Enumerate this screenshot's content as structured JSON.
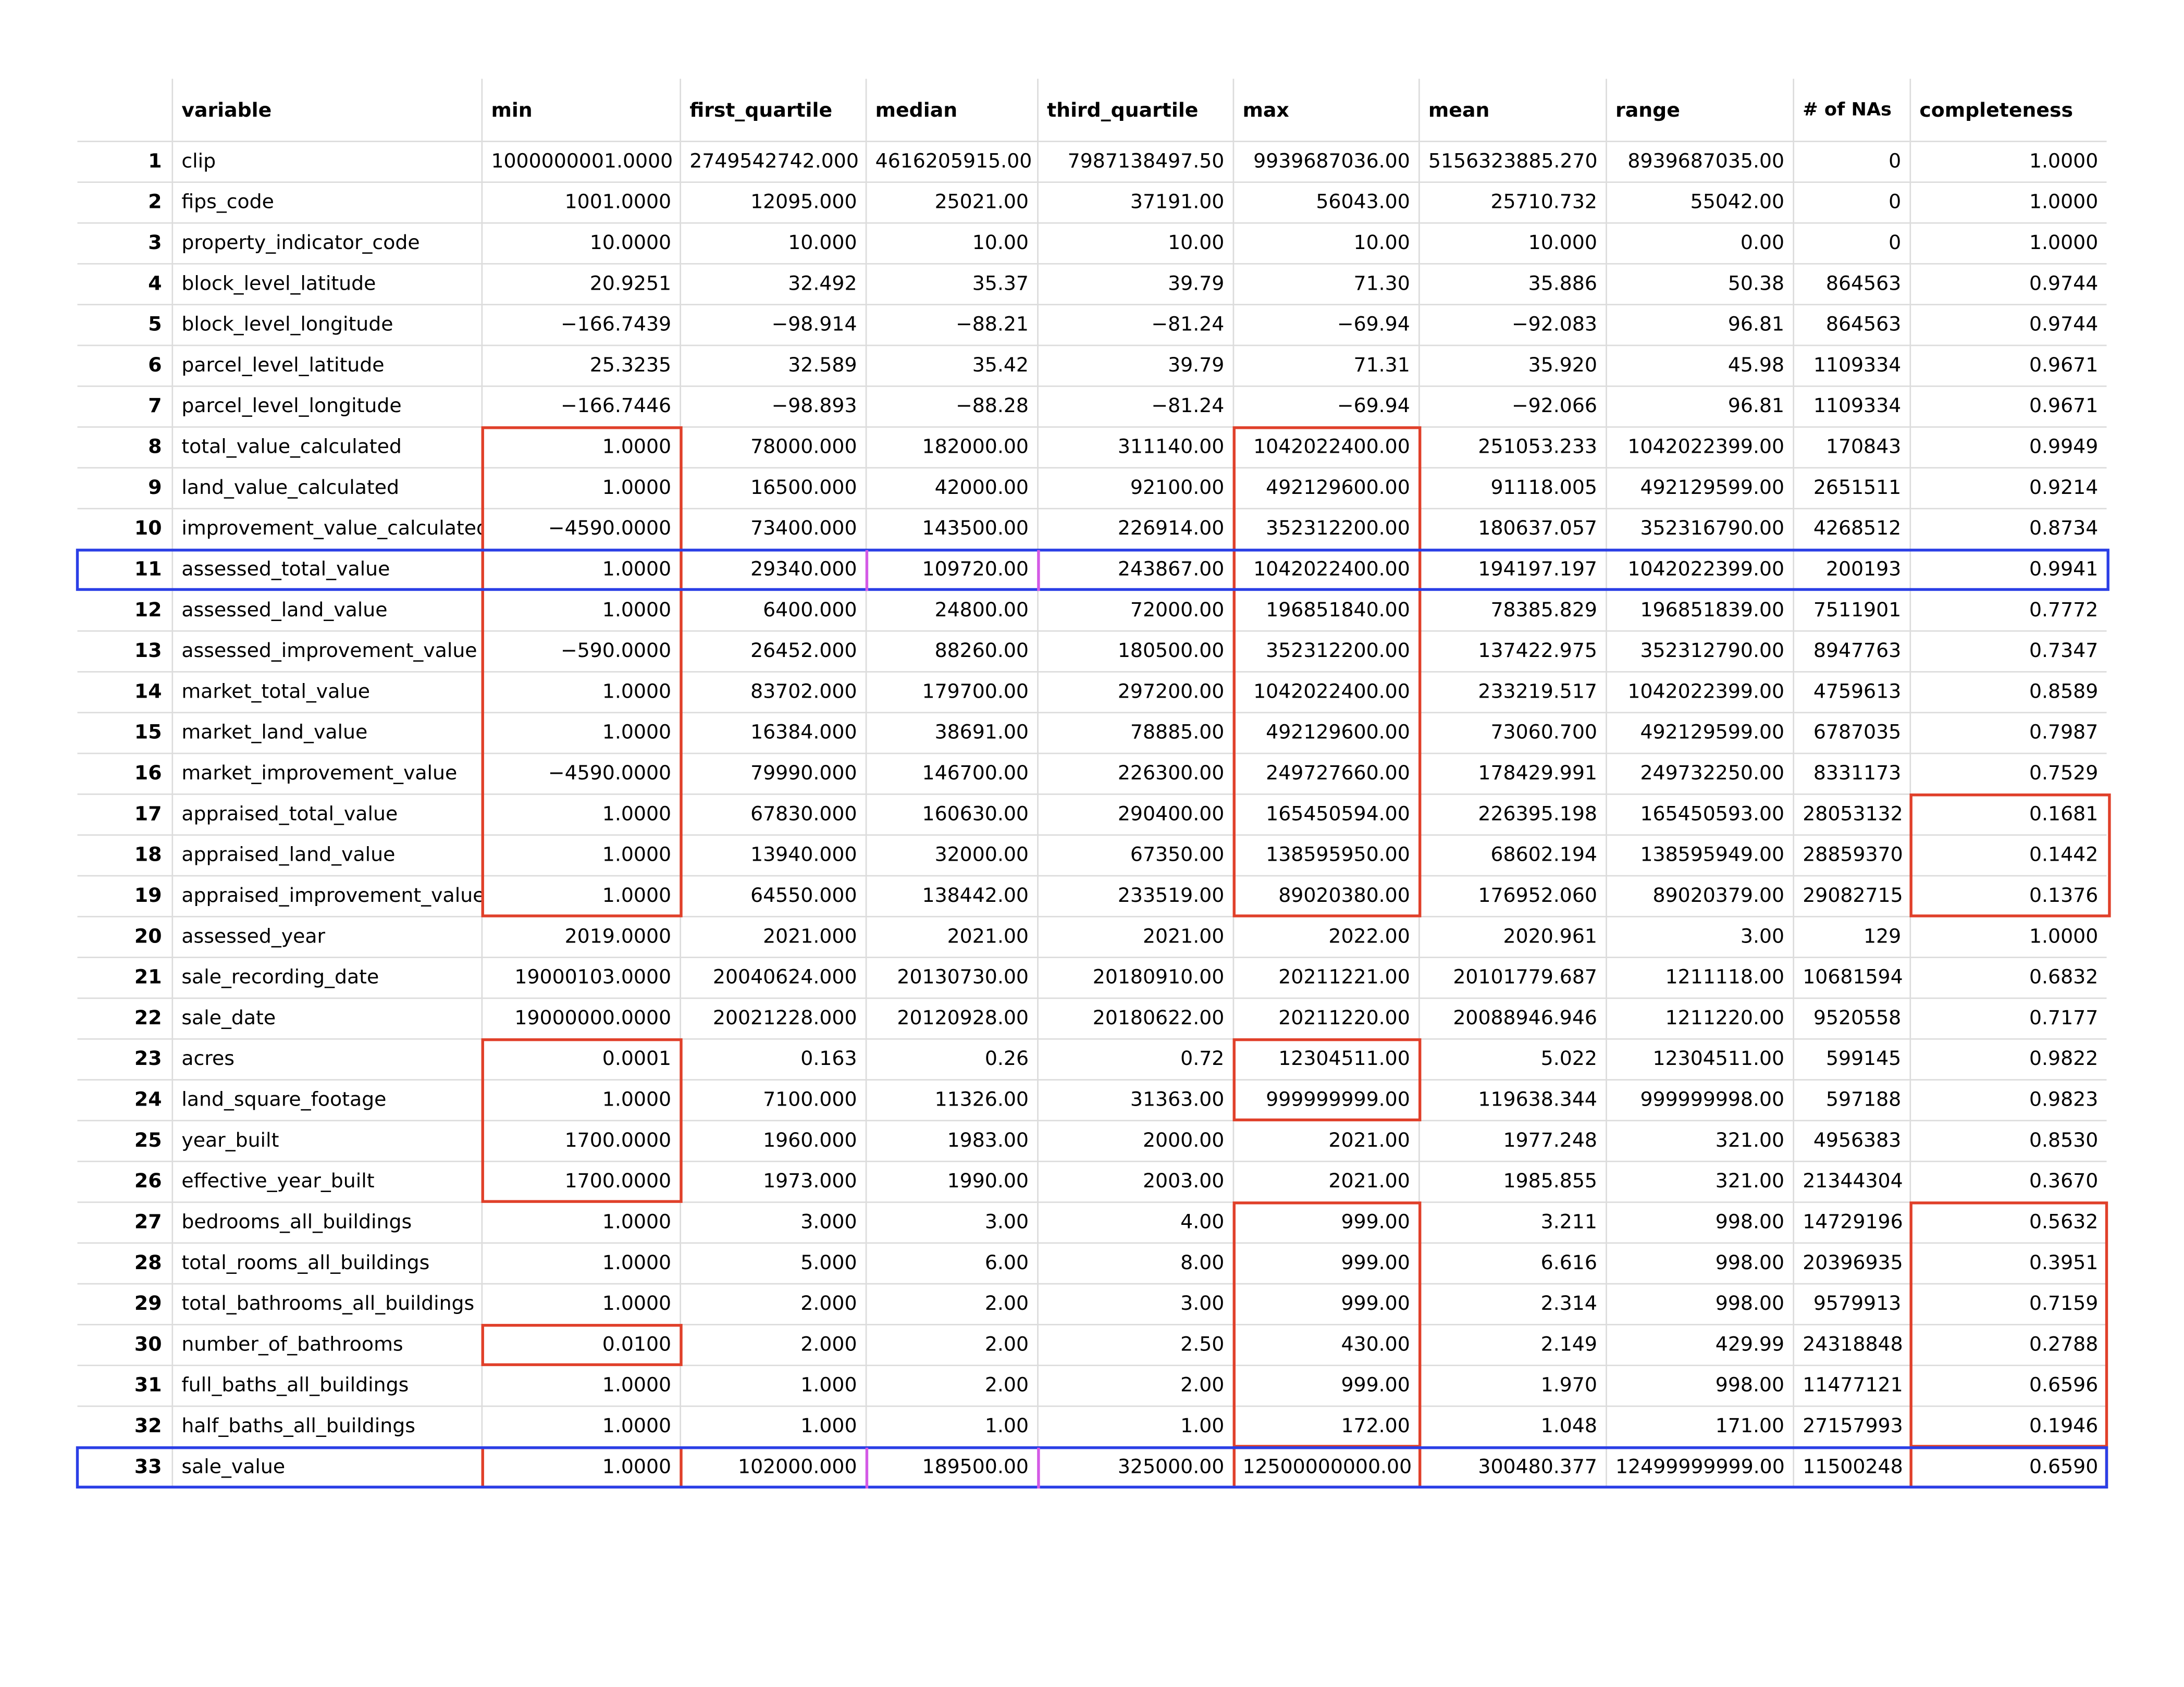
{
  "table": {
    "headers": [
      "",
      "variable",
      "min",
      "first_quartile",
      "median",
      "third_quartile",
      "max",
      "mean",
      "range",
      "# of NAs",
      "completeness"
    ],
    "rows": [
      [
        "1",
        "clip",
        "1000000001.0000",
        "2749542742.000",
        "4616205915.00",
        "7987138497.50",
        "9939687036.00",
        "5156323885.270",
        "8939687035.00",
        "0",
        "1.0000"
      ],
      [
        "2",
        "fips_code",
        "1001.0000",
        "12095.000",
        "25021.00",
        "37191.00",
        "56043.00",
        "25710.732",
        "55042.00",
        "0",
        "1.0000"
      ],
      [
        "3",
        "property_indicator_code",
        "10.0000",
        "10.000",
        "10.00",
        "10.00",
        "10.00",
        "10.000",
        "0.00",
        "0",
        "1.0000"
      ],
      [
        "4",
        "block_level_latitude",
        "20.9251",
        "32.492",
        "35.37",
        "39.79",
        "71.30",
        "35.886",
        "50.38",
        "864563",
        "0.9744"
      ],
      [
        "5",
        "block_level_longitude",
        "−166.7439",
        "−98.914",
        "−88.21",
        "−81.24",
        "−69.94",
        "−92.083",
        "96.81",
        "864563",
        "0.9744"
      ],
      [
        "6",
        "parcel_level_latitude",
        "25.3235",
        "32.589",
        "35.42",
        "39.79",
        "71.31",
        "35.920",
        "45.98",
        "1109334",
        "0.9671"
      ],
      [
        "7",
        "parcel_level_longitude",
        "−166.7446",
        "−98.893",
        "−88.28",
        "−81.24",
        "−69.94",
        "−92.066",
        "96.81",
        "1109334",
        "0.9671"
      ],
      [
        "8",
        "total_value_calculated",
        "1.0000",
        "78000.000",
        "182000.00",
        "311140.00",
        "1042022400.00",
        "251053.233",
        "1042022399.00",
        "170843",
        "0.9949"
      ],
      [
        "9",
        "land_value_calculated",
        "1.0000",
        "16500.000",
        "42000.00",
        "92100.00",
        "492129600.00",
        "91118.005",
        "492129599.00",
        "2651511",
        "0.9214"
      ],
      [
        "10",
        "improvement_value_calculated",
        "−4590.0000",
        "73400.000",
        "143500.00",
        "226914.00",
        "352312200.00",
        "180637.057",
        "352316790.00",
        "4268512",
        "0.8734"
      ],
      [
        "11",
        "assessed_total_value",
        "1.0000",
        "29340.000",
        "109720.00",
        "243867.00",
        "1042022400.00",
        "194197.197",
        "1042022399.00",
        "200193",
        "0.9941"
      ],
      [
        "12",
        "assessed_land_value",
        "1.0000",
        "6400.000",
        "24800.00",
        "72000.00",
        "196851840.00",
        "78385.829",
        "196851839.00",
        "7511901",
        "0.7772"
      ],
      [
        "13",
        "assessed_improvement_value",
        "−590.0000",
        "26452.000",
        "88260.00",
        "180500.00",
        "352312200.00",
        "137422.975",
        "352312790.00",
        "8947763",
        "0.7347"
      ],
      [
        "14",
        "market_total_value",
        "1.0000",
        "83702.000",
        "179700.00",
        "297200.00",
        "1042022400.00",
        "233219.517",
        "1042022399.00",
        "4759613",
        "0.8589"
      ],
      [
        "15",
        "market_land_value",
        "1.0000",
        "16384.000",
        "38691.00",
        "78885.00",
        "492129600.00",
        "73060.700",
        "492129599.00",
        "6787035",
        "0.7987"
      ],
      [
        "16",
        "market_improvement_value",
        "−4590.0000",
        "79990.000",
        "146700.00",
        "226300.00",
        "249727660.00",
        "178429.991",
        "249732250.00",
        "8331173",
        "0.7529"
      ],
      [
        "17",
        "appraised_total_value",
        "1.0000",
        "67830.000",
        "160630.00",
        "290400.00",
        "165450594.00",
        "226395.198",
        "165450593.00",
        "28053132",
        "0.1681"
      ],
      [
        "18",
        "appraised_land_value",
        "1.0000",
        "13940.000",
        "32000.00",
        "67350.00",
        "138595950.00",
        "68602.194",
        "138595949.00",
        "28859370",
        "0.1442"
      ],
      [
        "19",
        "appraised_improvement_value",
        "1.0000",
        "64550.000",
        "138442.00",
        "233519.00",
        "89020380.00",
        "176952.060",
        "89020379.00",
        "29082715",
        "0.1376"
      ],
      [
        "20",
        "assessed_year",
        "2019.0000",
        "2021.000",
        "2021.00",
        "2021.00",
        "2022.00",
        "2020.961",
        "3.00",
        "129",
        "1.0000"
      ],
      [
        "21",
        "sale_recording_date",
        "19000103.0000",
        "20040624.000",
        "20130730.00",
        "20180910.00",
        "20211221.00",
        "20101779.687",
        "1211118.00",
        "10681594",
        "0.6832"
      ],
      [
        "22",
        "sale_date",
        "19000000.0000",
        "20021228.000",
        "20120928.00",
        "20180622.00",
        "20211220.00",
        "20088946.946",
        "1211220.00",
        "9520558",
        "0.7177"
      ],
      [
        "23",
        "acres",
        "0.0001",
        "0.163",
        "0.26",
        "0.72",
        "12304511.00",
        "5.022",
        "12304511.00",
        "599145",
        "0.9822"
      ],
      [
        "24",
        "land_square_footage",
        "1.0000",
        "7100.000",
        "11326.00",
        "31363.00",
        "999999999.00",
        "119638.344",
        "999999998.00",
        "597188",
        "0.9823"
      ],
      [
        "25",
        "year_built",
        "1700.0000",
        "1960.000",
        "1983.00",
        "2000.00",
        "2021.00",
        "1977.248",
        "321.00",
        "4956383",
        "0.8530"
      ],
      [
        "26",
        "effective_year_built",
        "1700.0000",
        "1973.000",
        "1990.00",
        "2003.00",
        "2021.00",
        "1985.855",
        "321.00",
        "21344304",
        "0.3670"
      ],
      [
        "27",
        "bedrooms_all_buildings",
        "1.0000",
        "3.000",
        "3.00",
        "4.00",
        "999.00",
        "3.211",
        "998.00",
        "14729196",
        "0.5632"
      ],
      [
        "28",
        "total_rooms_all_buildings",
        "1.0000",
        "5.000",
        "6.00",
        "8.00",
        "999.00",
        "6.616",
        "998.00",
        "20396935",
        "0.3951"
      ],
      [
        "29",
        "total_bathrooms_all_buildings",
        "1.0000",
        "2.000",
        "2.00",
        "3.00",
        "999.00",
        "2.314",
        "998.00",
        "9579913",
        "0.7159"
      ],
      [
        "30",
        "number_of_bathrooms",
        "0.0100",
        "2.000",
        "2.00",
        "2.50",
        "430.00",
        "2.149",
        "429.99",
        "24318848",
        "0.2788"
      ],
      [
        "31",
        "full_baths_all_buildings",
        "1.0000",
        "1.000",
        "2.00",
        "2.00",
        "999.00",
        "1.970",
        "998.00",
        "11477121",
        "0.6596"
      ],
      [
        "32",
        "half_baths_all_buildings",
        "1.0000",
        "1.000",
        "1.00",
        "1.00",
        "172.00",
        "1.048",
        "171.00",
        "27157993",
        "0.1946"
      ],
      [
        "33",
        "sale_value",
        "1.0000",
        "102000.000",
        "189500.00",
        "325000.00",
        "12500000000.00",
        "300480.377",
        "12499999999.00",
        "11500248",
        "0.6590"
      ]
    ]
  },
  "highlight_colors": {
    "red": "#e0402a",
    "blue": "#2b3fe6",
    "magenta": "#d45ae6",
    "grid": "#dcdcdc"
  }
}
